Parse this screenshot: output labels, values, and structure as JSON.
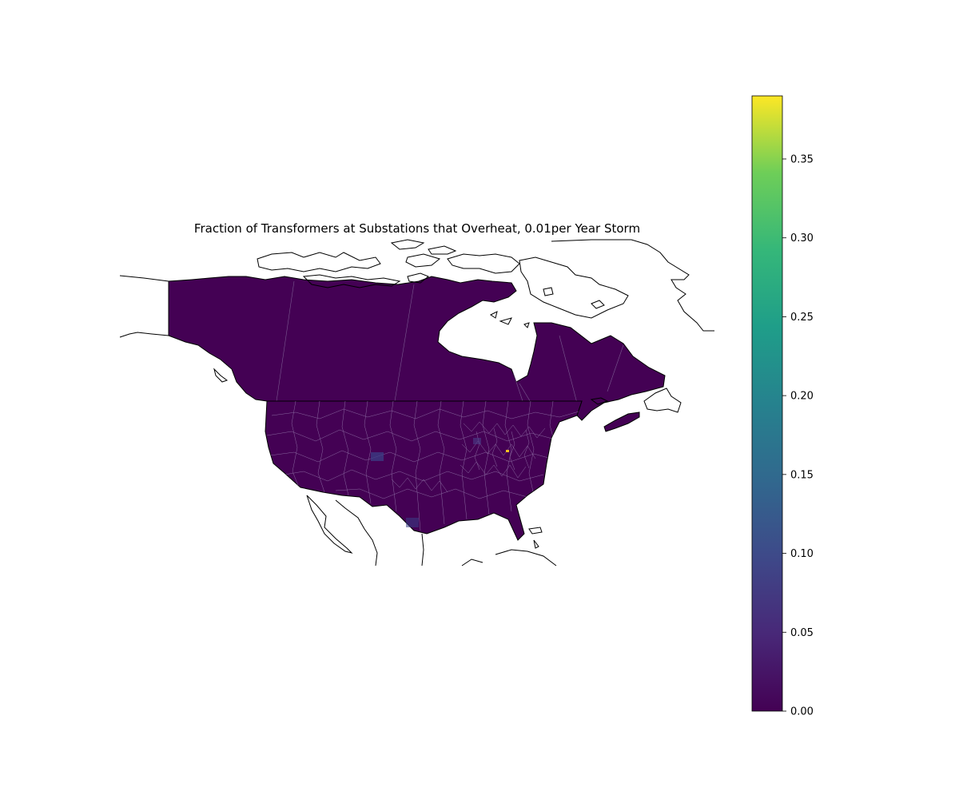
{
  "title": "Fraction of Transformers at Substations that Overheat, 0.01per Year Storm",
  "colorbar": {
    "colormap": "viridis",
    "min": 0.0,
    "max": 0.39,
    "ticks": [
      "0.00",
      "0.05",
      "0.10",
      "0.15",
      "0.20",
      "0.25",
      "0.30",
      "0.35"
    ],
    "tick_values": [
      0.0,
      0.05,
      0.1,
      0.15,
      0.2,
      0.25,
      0.3,
      0.35
    ]
  },
  "colors": {
    "background": "#ffffff",
    "base_fill": "#440154",
    "region_edge": "#8a6aa0",
    "coastline": "#000000",
    "hotspot": "#f0c020",
    "elevated": "#3b3f86"
  },
  "chart_data": {
    "type": "heatmap",
    "title": "Fraction of Transformers at Substations that Overheat, 0.01per Year Storm",
    "colorbar_range": [
      0.0,
      0.39
    ],
    "notes_visible": "Choropleth of North America; nearly all regions near 0.00, isolated small regions with higher values"
  }
}
